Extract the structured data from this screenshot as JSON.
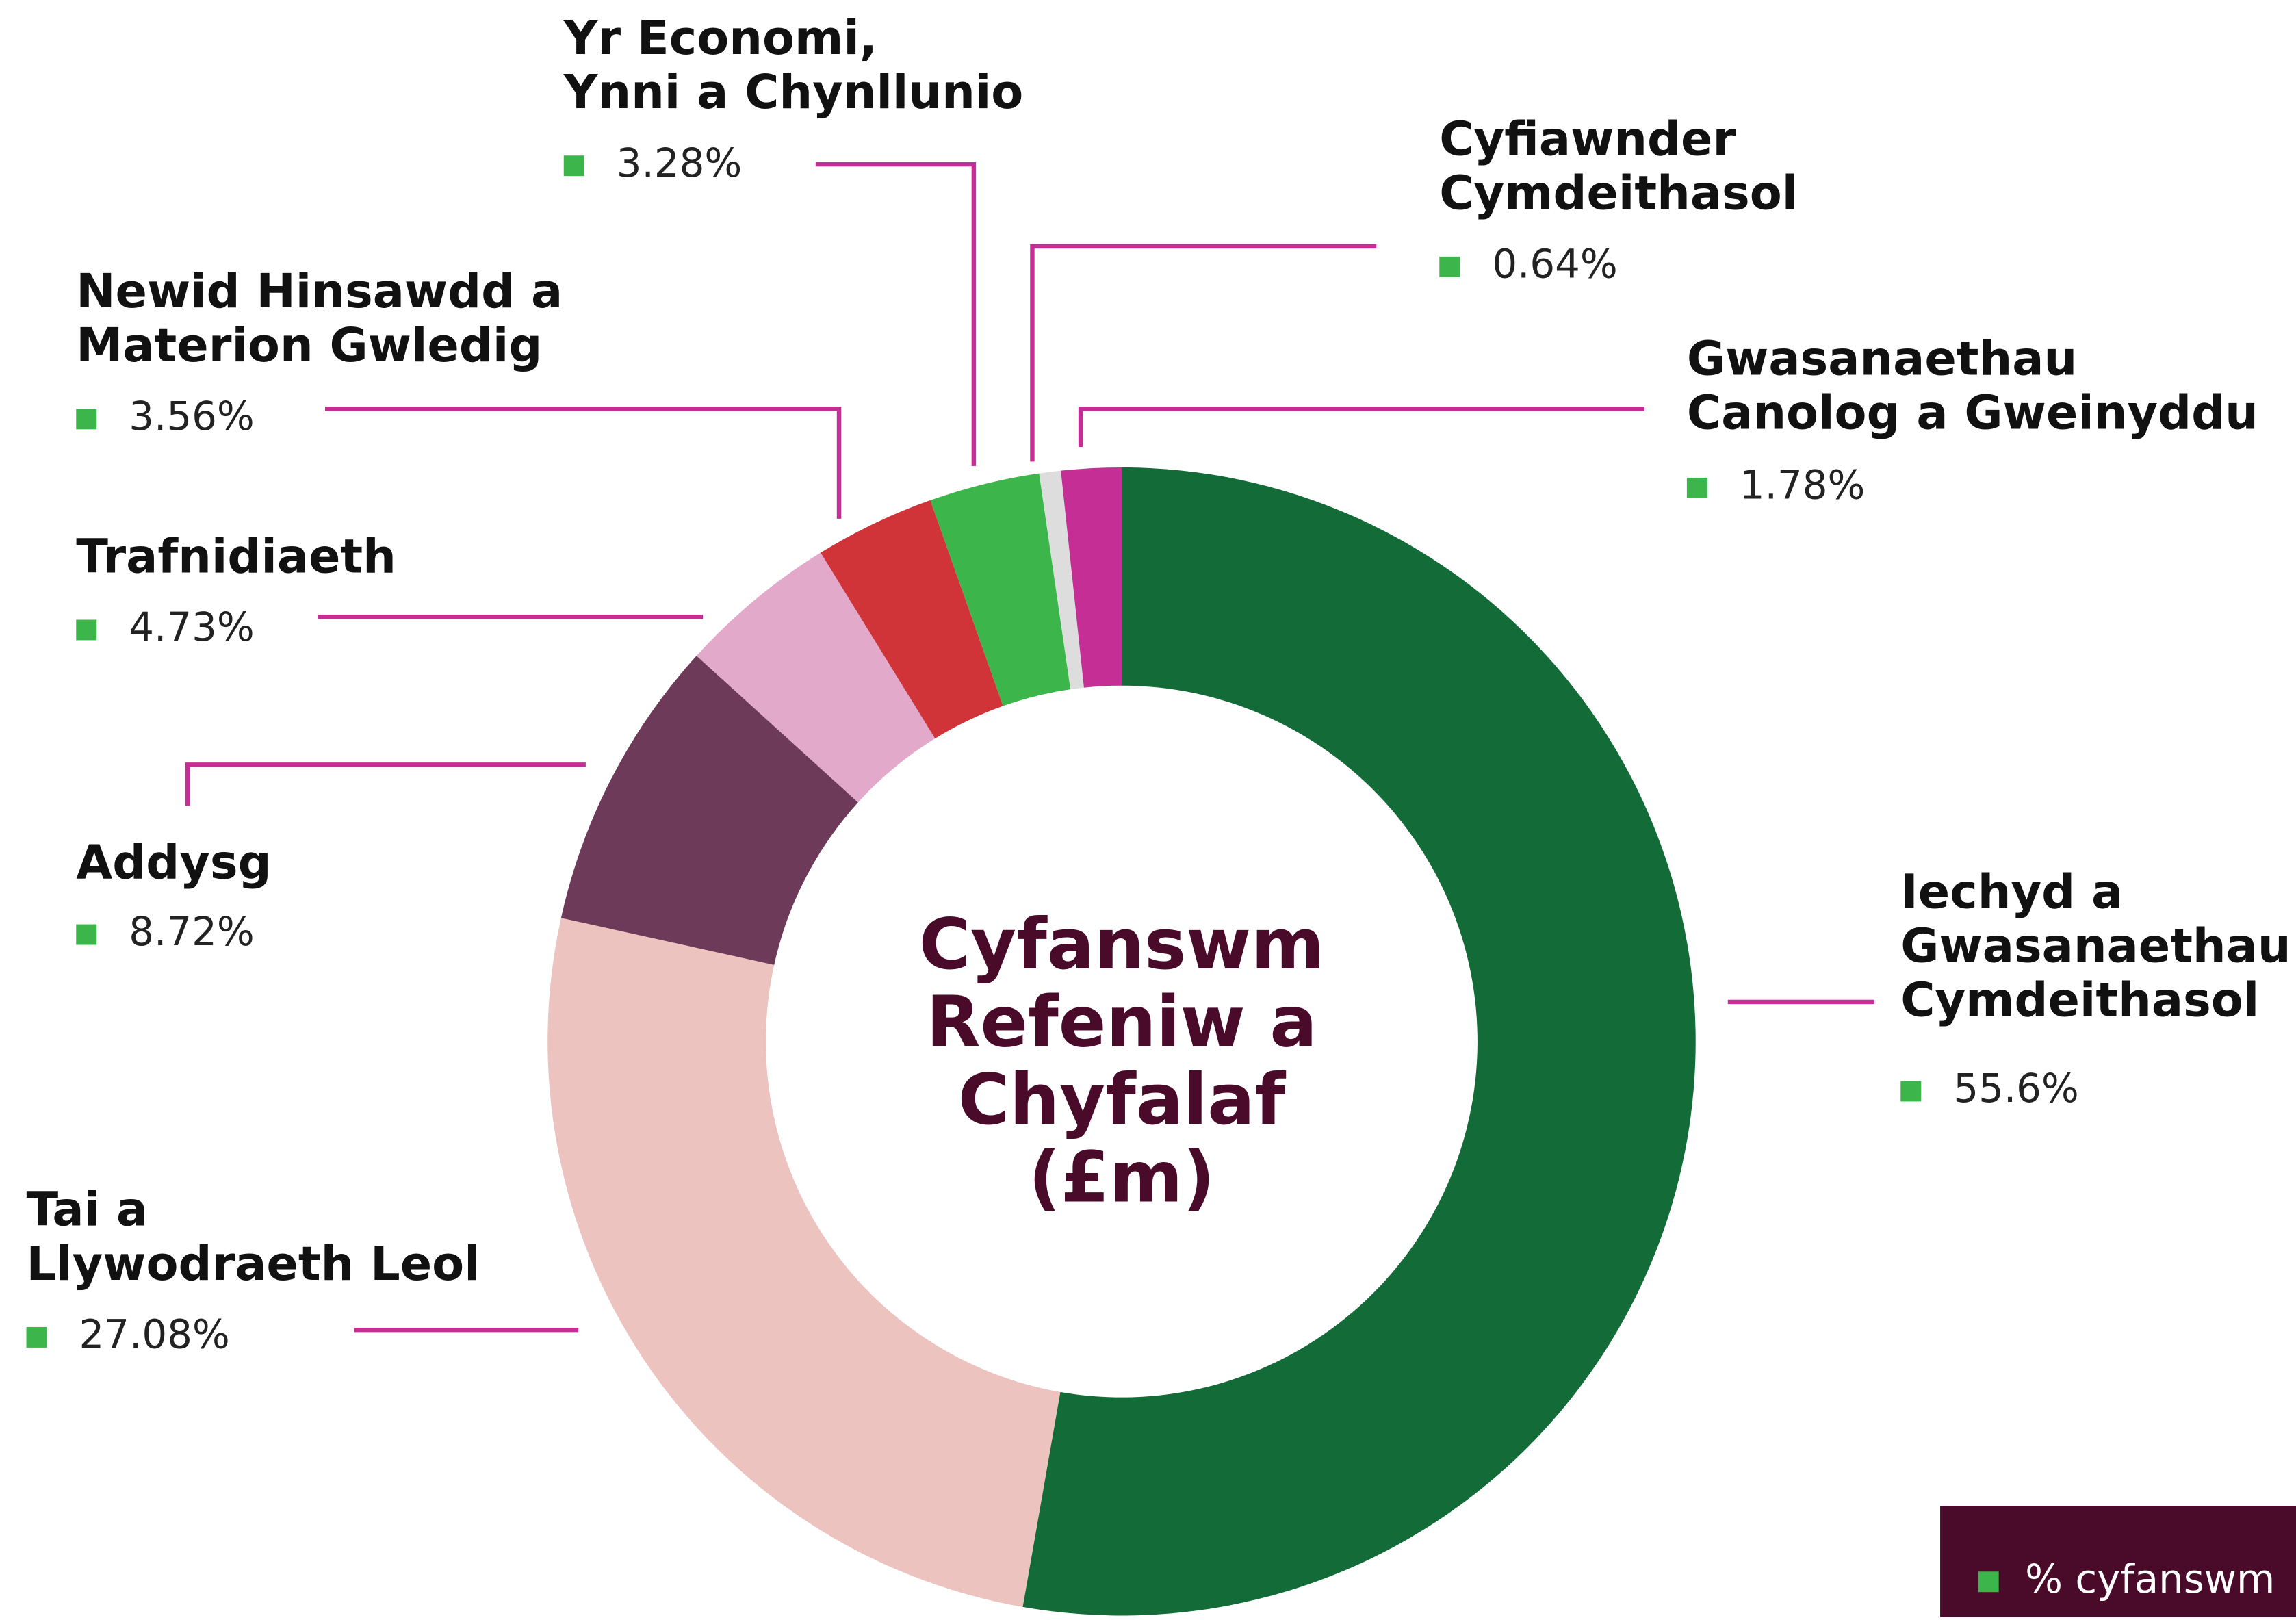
{
  "chart_data": {
    "type": "donut",
    "center_label": [
      "Cyfanswm",
      "Refeniw a",
      "Chyfalaf",
      "(£m)"
    ],
    "categories": [
      [
        "Iechyd a",
        "Gwasanaethau",
        "Cymdeithasol"
      ],
      [
        "Tai a",
        "Llywodraeth Leol"
      ],
      [
        "Addysg"
      ],
      [
        "Trafnidiaeth"
      ],
      [
        "Newid Hinsawdd a",
        "Materion Gwledig"
      ],
      [
        "Yr Economi,",
        "Ynni a Chynllunio"
      ],
      [
        "Cyfiawnder",
        "Cymdeithasol"
      ],
      [
        "Gwasanaethau",
        "Canolog a Gweinyddu"
      ]
    ],
    "values": [
      55.6,
      27.08,
      8.72,
      4.73,
      3.56,
      3.28,
      0.64,
      1.78
    ],
    "value_labels": [
      "55.6%",
      "27.08%",
      "8.72%",
      "4.73%",
      "3.56%",
      "3.28%",
      "0.64%",
      "1.78%"
    ],
    "colors": [
      "#136b38",
      "#ecc3bf",
      "#6e3a5a",
      "#e2a9cb",
      "#d13438",
      "#3cb54a",
      "#dddddd",
      "#c42e95"
    ],
    "legend_label": "% cyfanswm"
  }
}
